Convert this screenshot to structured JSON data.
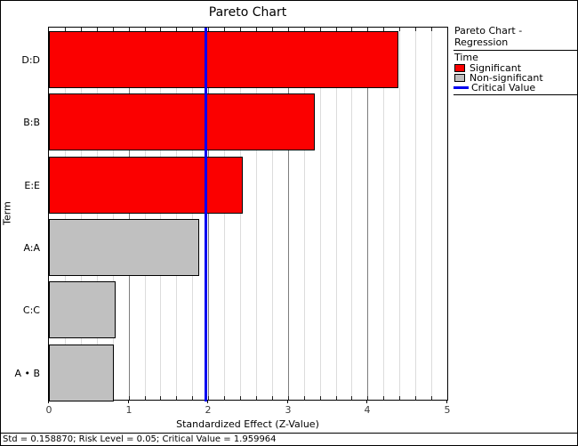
{
  "window": {
    "status_bar": "Std = 0.158870; Risk Level = 0.05; Critical Value = 1.959964"
  },
  "chart_data": {
    "type": "bar",
    "orientation": "horizontal",
    "title": "Pareto Chart",
    "xlabel": "Standardized Effect (Z-Value)",
    "ylabel": "Term",
    "xlim": [
      0,
      5
    ],
    "x_ticks": [
      0,
      1,
      2,
      3,
      4,
      5
    ],
    "minor_grid_step": 0.2,
    "grid": "vertical",
    "categories": [
      "D:D",
      "B:B",
      "E:E",
      "A:A",
      "C:C",
      "A • B"
    ],
    "values": [
      4.39,
      3.34,
      2.43,
      1.89,
      0.84,
      0.81
    ],
    "significant": [
      true,
      true,
      true,
      false,
      false,
      false
    ],
    "critical_value": 1.959964,
    "colors": {
      "significant": "#fb0000",
      "non_significant": "#c0c0c0",
      "critical_line": "#0000f0",
      "grid_minor": "#dcdcdc",
      "grid_major": "#7d7d7d"
    }
  },
  "legend": {
    "title": "Pareto Chart - Regression",
    "series_label": "Time",
    "items": [
      {
        "label": "Significant",
        "swatch": "significant-square"
      },
      {
        "label": "Non-significant",
        "swatch": "non-significant-square"
      },
      {
        "label": "Critical Value",
        "swatch": "critical-value-line"
      }
    ]
  }
}
